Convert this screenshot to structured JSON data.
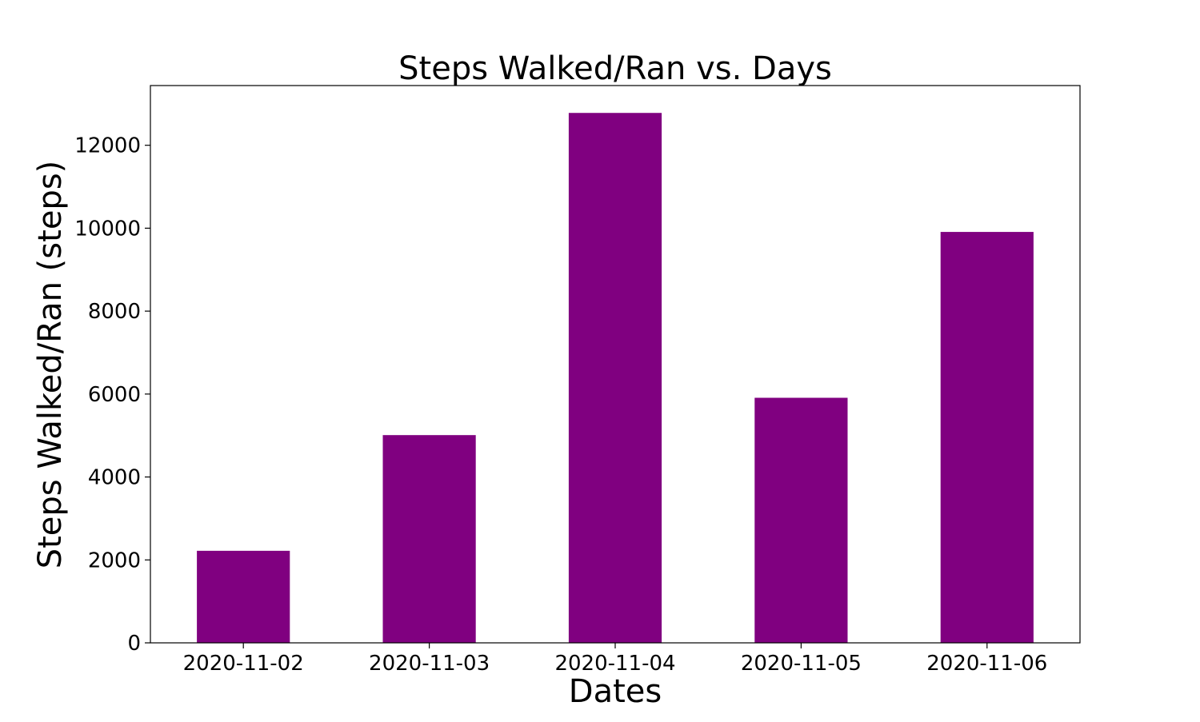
{
  "chart_data": {
    "type": "bar",
    "title": "Steps Walked/Ran vs. Days",
    "xlabel": "Dates",
    "ylabel": "Steps Walked/Ran (steps)",
    "categories": [
      "2020-11-02",
      "2020-11-03",
      "2020-11-04",
      "2020-11-05",
      "2020-11-06"
    ],
    "values": [
      2220,
      5010,
      12780,
      5910,
      9910
    ],
    "ylim": [
      0,
      13440
    ],
    "yticks": [
      0,
      2000,
      4000,
      6000,
      8000,
      10000,
      12000
    ],
    "bar_color": "#800080",
    "grid": false,
    "legend": "none"
  }
}
